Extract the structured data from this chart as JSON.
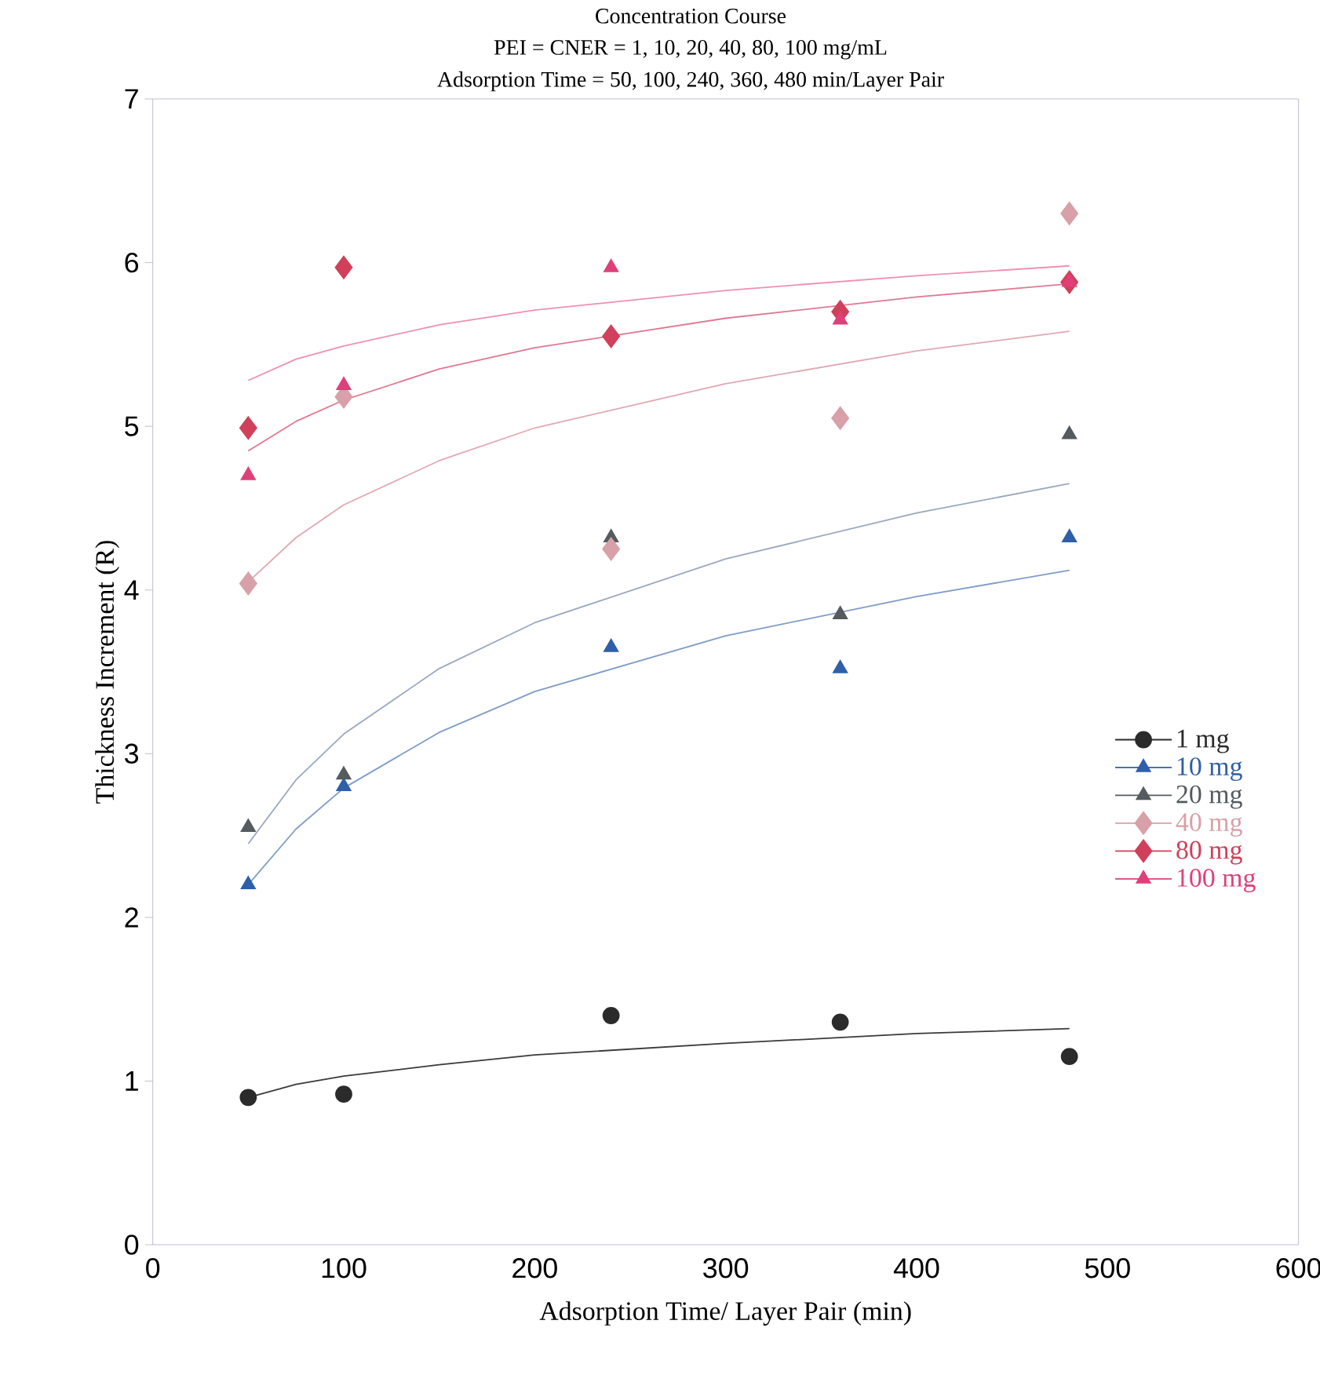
{
  "chart_data": {
    "type": "scatter",
    "title": "Concentration Course",
    "subtitle": "PEI = CNER = 1, 10, 20, 40, 80, 100 mg/mL",
    "annotations": [
      "Adsorption Time = 50, 100, 240, 360, 480 min/Layer Pair"
    ],
    "xlabel": "Adsorption Time/ Layer Pair (min)",
    "ylabel": "Thickness Increment (R)",
    "xlim": [
      0,
      600
    ],
    "xticks": [
      0,
      100,
      200,
      300,
      400,
      500,
      600
    ],
    "ylim": [
      0,
      7
    ],
    "yticks": [
      0,
      1,
      2,
      3,
      4,
      5,
      6,
      7
    ],
    "grid": false,
    "legend": "right",
    "x": [
      50,
      100,
      240,
      360,
      480
    ],
    "series": [
      {
        "name": "1 mg",
        "color": "#2b2b2b",
        "marker": "circle",
        "values": [
          0.9,
          0.92,
          1.4,
          1.36,
          1.15
        ]
      },
      {
        "name": "10 mg",
        "color": "#2f5fa8",
        "marker": "triangle",
        "values": [
          2.2,
          2.8,
          3.65,
          3.52,
          4.32
        ]
      },
      {
        "name": "20 mg",
        "color": "#555b5e",
        "marker": "triangle",
        "values": [
          2.55,
          2.87,
          4.32,
          3.85,
          4.95
        ]
      },
      {
        "name": "40 mg",
        "color": "#d8a0a8",
        "marker": "diamond",
        "values": [
          4.04,
          5.18,
          4.25,
          5.05,
          6.3
        ]
      },
      {
        "name": "80 mg",
        "color": "#d0405a",
        "marker": "diamond",
        "values": [
          4.99,
          5.97,
          5.55,
          5.7,
          5.88
        ]
      },
      {
        "name": "100 mg",
        "color": "#e0407a",
        "marker": "triangle",
        "values": [
          4.7,
          5.25,
          5.97,
          5.65,
          5.88
        ]
      },
      {
        "type": "line",
        "color": "#3a3a3a",
        "marker": "none",
        "x": [
          50,
          75,
          100,
          150,
          200,
          300,
          400,
          480
        ],
        "values": [
          0.9,
          0.98,
          1.03,
          1.1,
          1.16,
          1.23,
          1.29,
          1.32
        ]
      },
      {
        "type": "line",
        "color": "#7f9cc8",
        "marker": "none",
        "x": [
          50,
          75,
          100,
          150,
          200,
          300,
          400,
          480
        ],
        "values": [
          2.2,
          2.54,
          2.79,
          3.13,
          3.38,
          3.72,
          3.96,
          4.12
        ]
      },
      {
        "type": "line",
        "color": "#9aa8c0",
        "marker": "none",
        "x": [
          50,
          75,
          100,
          150,
          200,
          300,
          400,
          480
        ],
        "values": [
          2.45,
          2.84,
          3.12,
          3.52,
          3.8,
          4.19,
          4.47,
          4.65
        ]
      },
      {
        "type": "line",
        "color": "#e0a8b4",
        "marker": "none",
        "x": [
          50,
          75,
          100,
          150,
          200,
          300,
          400,
          480
        ],
        "values": [
          4.05,
          4.32,
          4.52,
          4.79,
          4.99,
          5.26,
          5.46,
          5.58
        ]
      },
      {
        "type": "line",
        "color": "#e07890",
        "marker": "none",
        "x": [
          50,
          75,
          100,
          150,
          200,
          300,
          400,
          480
        ],
        "values": [
          4.85,
          5.03,
          5.16,
          5.35,
          5.48,
          5.66,
          5.79,
          5.87
        ]
      },
      {
        "type": "line",
        "color": "#f090b0",
        "marker": "none",
        "x": [
          50,
          75,
          100,
          150,
          200,
          300,
          400,
          480
        ],
        "values": [
          5.28,
          5.41,
          5.49,
          5.62,
          5.71,
          5.83,
          5.92,
          5.98
        ]
      }
    ]
  }
}
